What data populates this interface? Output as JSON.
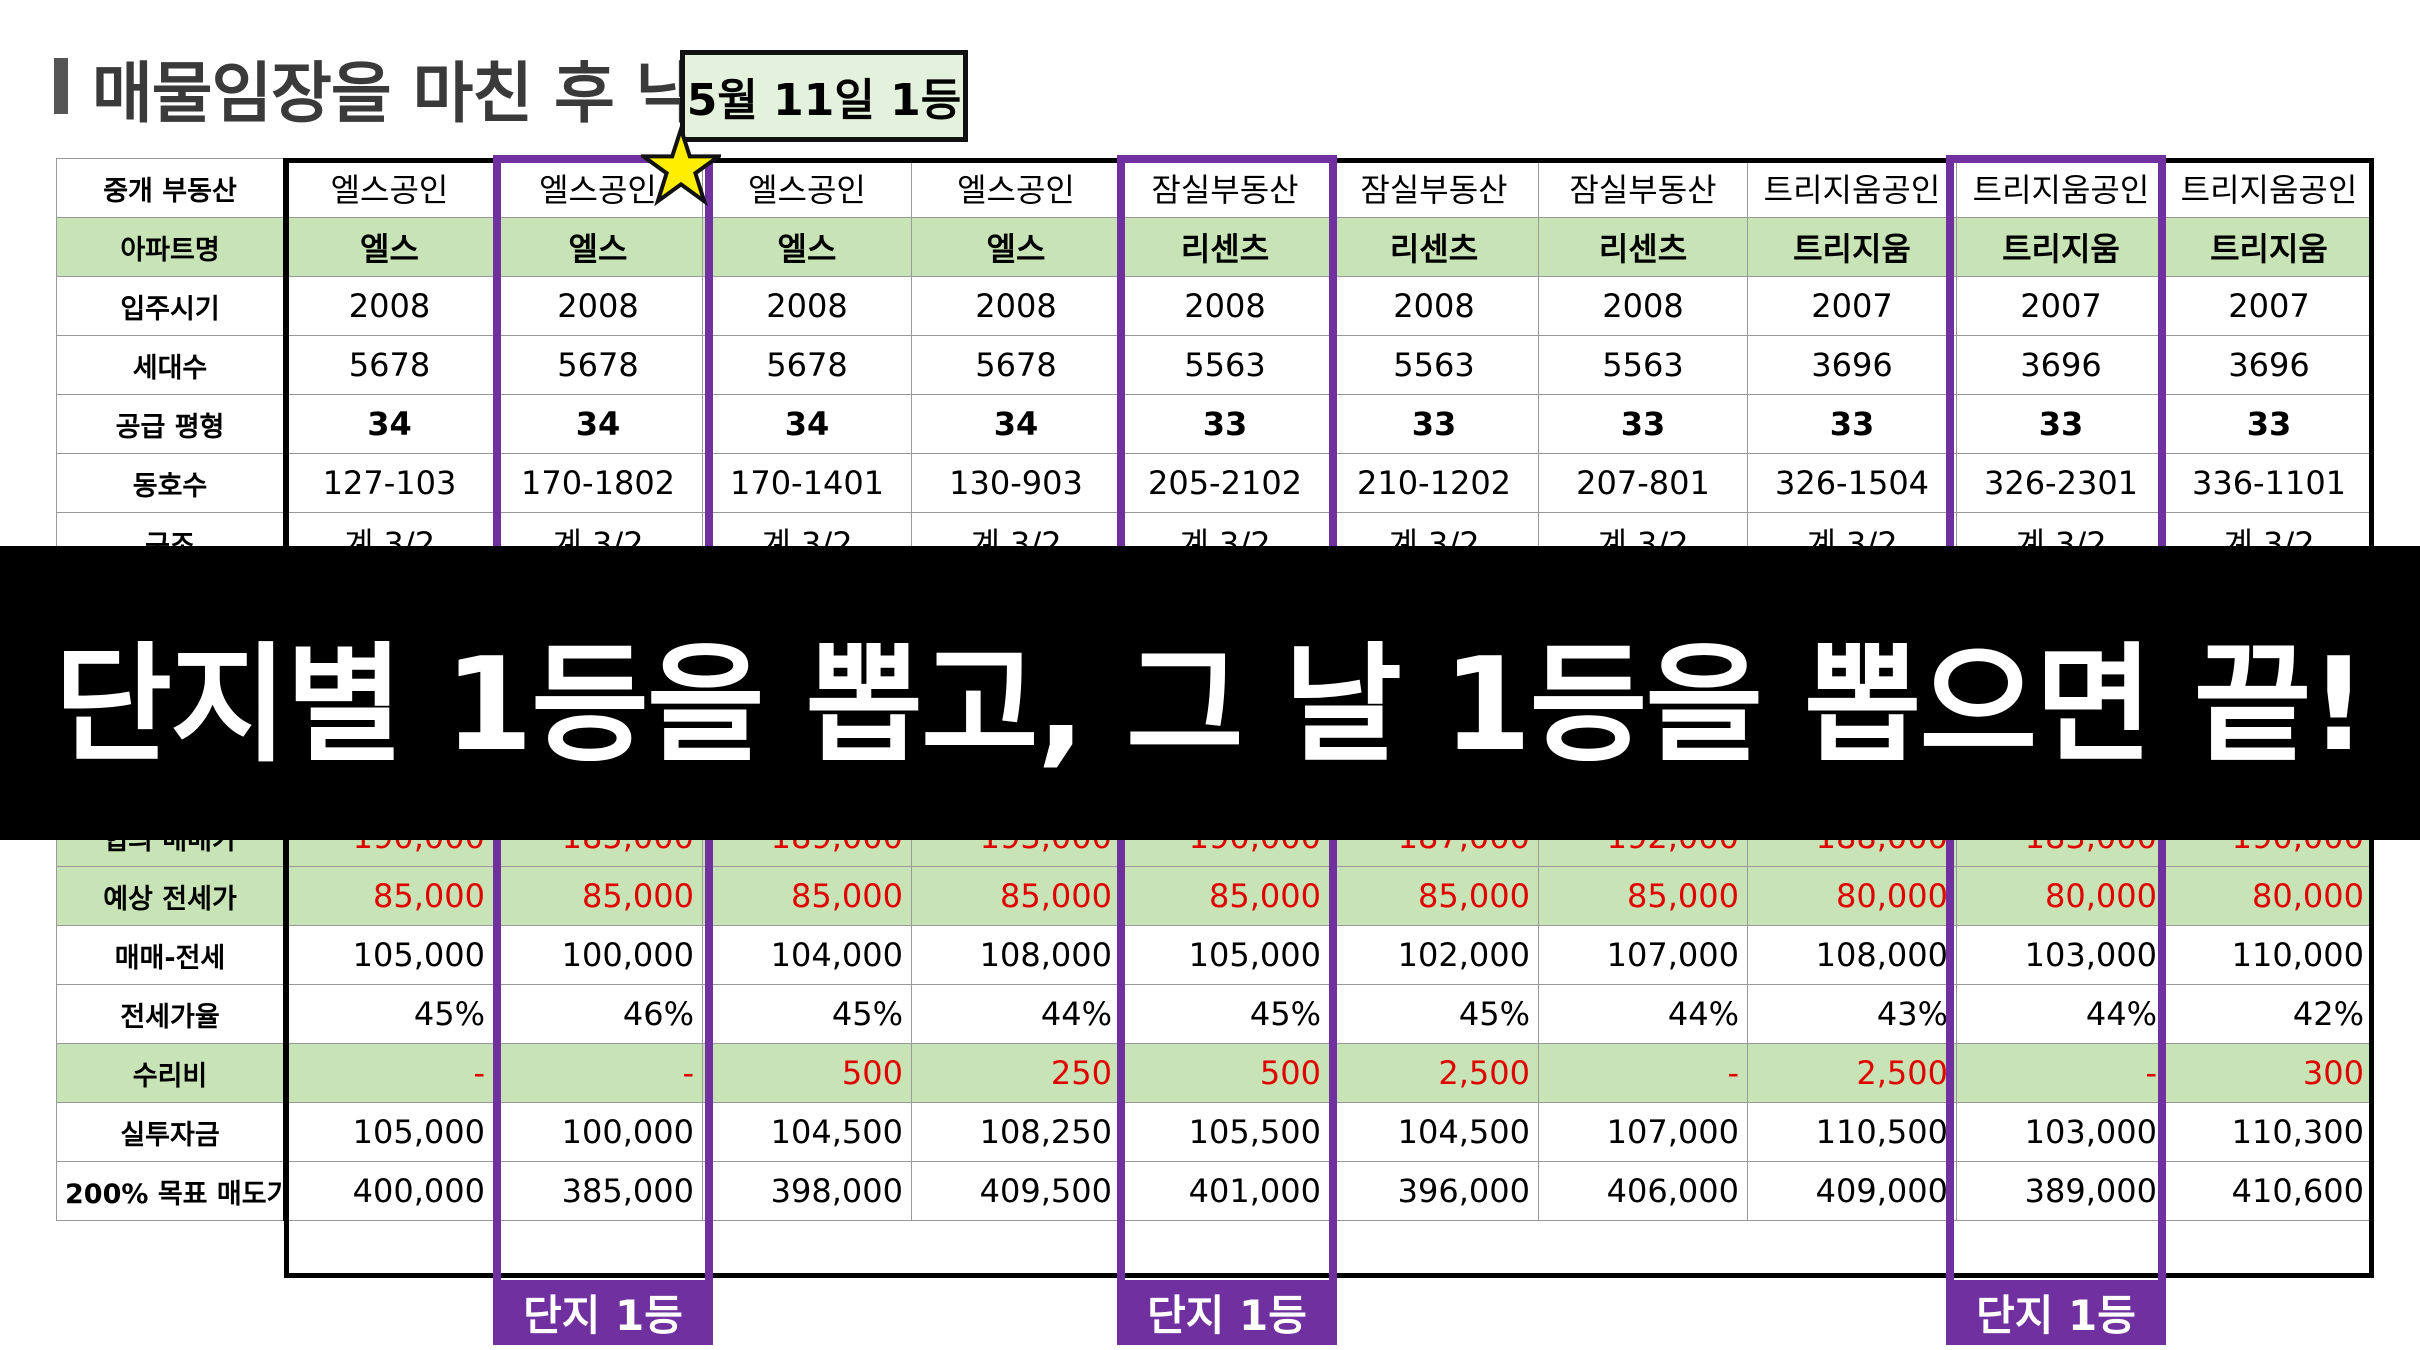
{
  "title": "매물임장을 마친 후 낙",
  "callout": "5월 11일 1등",
  "banner": "단지별 1등을 뽑고, 그 날 1등을 뽑으면 끝!",
  "highlight_label": "단지 1등",
  "colors": {
    "highlight": "#7030a0",
    "green": "#c8e3b5",
    "red": "#e00000",
    "banner": "#000000"
  },
  "table": {
    "rows": [
      {
        "label": "중개 부동산",
        "green": false,
        "cells": [
          "엘스공인",
          "엘스공인",
          "엘스공인",
          "엘스공인",
          "잠실부동산",
          "잠실부동산",
          "잠실부동산",
          "트리지움공인",
          "트리지움공인",
          "트리지움공인"
        ]
      },
      {
        "label": "아파트명",
        "green": true,
        "bold": true,
        "cells": [
          "엘스",
          "엘스",
          "엘스",
          "엘스",
          "리센츠",
          "리센츠",
          "리센츠",
          "트리지움",
          "트리지움",
          "트리지움"
        ]
      },
      {
        "label": "입주시기",
        "green": false,
        "cells": [
          "2008",
          "2008",
          "2008",
          "2008",
          "2008",
          "2008",
          "2008",
          "2007",
          "2007",
          "2007"
        ]
      },
      {
        "label": "세대수",
        "green": false,
        "cells": [
          "5678",
          "5678",
          "5678",
          "5678",
          "5563",
          "5563",
          "5563",
          "3696",
          "3696",
          "3696"
        ]
      },
      {
        "label": "공급 평형",
        "green": false,
        "bold": true,
        "cells": [
          "34",
          "34",
          "34",
          "34",
          "33",
          "33",
          "33",
          "33",
          "33",
          "33"
        ]
      },
      {
        "label": "동호수",
        "green": false,
        "cells": [
          "127-103",
          "170-1802",
          "170-1401",
          "130-903",
          "205-2102",
          "210-1202",
          "207-801",
          "326-1504",
          "326-2301",
          "336-1101"
        ]
      },
      {
        "label": "구조",
        "green": false,
        "cells": [
          "계 3/2",
          "계 3/2",
          "계 3/2",
          "계 3/2",
          "계 3/2",
          "계 3/2",
          "계 3/2",
          "계 3/2",
          "계 3/2",
          "계 3/2"
        ]
      },
      {
        "label": "",
        "green": false,
        "cells": [
          "",
          "",
          "",
          "",
          "",
          "",
          "",
          "",
          "",
          ""
        ]
      },
      {
        "label": "",
        "green": false,
        "cells": [
          "",
          "",
          "",
          "",
          "",
          "",
          "",
          "",
          "",
          ""
        ]
      },
      {
        "label": "",
        "green": false,
        "cells": [
          "",
          "",
          "",
          "",
          "",
          "",
          "",
          "",
          "",
          ""
        ]
      },
      {
        "label": "",
        "green": false,
        "cells": [
          "",
          "",
          "",
          "",
          "",
          "",
          "",
          "",
          "",
          ""
        ]
      },
      {
        "label": "협의 매매가",
        "green": true,
        "red": true,
        "right": true,
        "cells": [
          "190,000",
          "185,000",
          "189,000",
          "193,000",
          "190,000",
          "187,000",
          "192,000",
          "188,000",
          "183,000",
          "190,000"
        ]
      },
      {
        "label": "예상 전세가",
        "green": true,
        "red": true,
        "right": true,
        "cells": [
          "85,000",
          "85,000",
          "85,000",
          "85,000",
          "85,000",
          "85,000",
          "85,000",
          "80,000",
          "80,000",
          "80,000"
        ]
      },
      {
        "label": "매매-전세",
        "green": false,
        "right": true,
        "cells": [
          "105,000",
          "100,000",
          "104,000",
          "108,000",
          "105,000",
          "102,000",
          "107,000",
          "108,000",
          "103,000",
          "110,000"
        ]
      },
      {
        "label": "전세가율",
        "green": false,
        "right": true,
        "cells": [
          "45%",
          "46%",
          "45%",
          "44%",
          "45%",
          "45%",
          "44%",
          "43%",
          "44%",
          "42%"
        ]
      },
      {
        "label": "수리비",
        "green": true,
        "red": true,
        "right": true,
        "cells": [
          "-",
          "-",
          "500",
          "250",
          "500",
          "2,500",
          "-",
          "2,500",
          "-",
          "300"
        ]
      },
      {
        "label": "실투자금",
        "green": false,
        "right": true,
        "cells": [
          "105,000",
          "100,000",
          "104,500",
          "108,250",
          "105,500",
          "104,500",
          "107,000",
          "110,500",
          "103,000",
          "110,300"
        ]
      },
      {
        "label": "200% 목표 매도가",
        "green": false,
        "right": true,
        "cells": [
          "400,000",
          "385,000",
          "398,000",
          "409,500",
          "401,000",
          "396,000",
          "406,000",
          "409,000",
          "389,000",
          "410,600"
        ]
      }
    ]
  }
}
